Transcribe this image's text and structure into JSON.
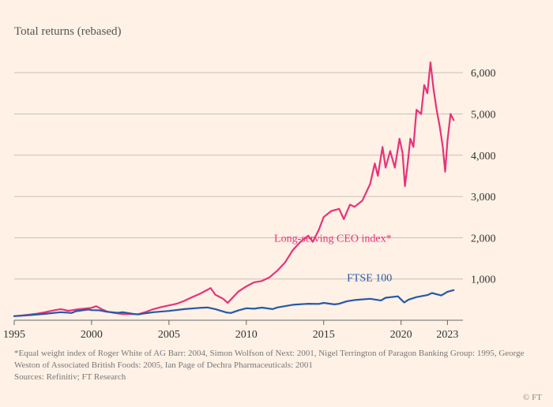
{
  "chart": {
    "type": "line",
    "background_color": "#fff1e5",
    "subtitle": "Total returns (rebased)",
    "xlim": [
      1995,
      2024
    ],
    "ylim": [
      0,
      6500
    ],
    "ytick_step": 1000,
    "yticks": [
      1000,
      2000,
      3000,
      4000,
      5000,
      6000
    ],
    "xticks": [
      1995,
      2000,
      2005,
      2010,
      2015,
      2020,
      2023
    ],
    "grid_color": "#c9beb4",
    "axis_color": "#666666",
    "tick_fontsize": 14,
    "subtitle_fontsize": 15,
    "label_fontsize": 14,
    "line_width": 2.2,
    "series": [
      {
        "name": "ceo_index",
        "label": "Long-serving CEO index*",
        "color": "#e6337a",
        "label_x": 2011.8,
        "label_y": 1900,
        "values": [
          [
            1995,
            100
          ],
          [
            1995.5,
            115
          ],
          [
            1996,
            135
          ],
          [
            1996.5,
            160
          ],
          [
            1997,
            195
          ],
          [
            1997.5,
            235
          ],
          [
            1998,
            270
          ],
          [
            1998.5,
            230
          ],
          [
            1999,
            260
          ],
          [
            1999.5,
            280
          ],
          [
            2000,
            300
          ],
          [
            2000.3,
            340
          ],
          [
            2000.7,
            260
          ],
          [
            2001,
            210
          ],
          [
            2001.5,
            175
          ],
          [
            2002,
            150
          ],
          [
            2002.5,
            150
          ],
          [
            2003,
            145
          ],
          [
            2003.5,
            200
          ],
          [
            2004,
            270
          ],
          [
            2004.5,
            320
          ],
          [
            2005,
            360
          ],
          [
            2005.5,
            400
          ],
          [
            2006,
            470
          ],
          [
            2006.5,
            560
          ],
          [
            2007,
            640
          ],
          [
            2007.3,
            700
          ],
          [
            2007.7,
            780
          ],
          [
            2008,
            620
          ],
          [
            2008.5,
            520
          ],
          [
            2008.8,
            420
          ],
          [
            2009,
            500
          ],
          [
            2009.5,
            700
          ],
          [
            2010,
            820
          ],
          [
            2010.5,
            920
          ],
          [
            2011,
            950
          ],
          [
            2011.5,
            1040
          ],
          [
            2012,
            1200
          ],
          [
            2012.5,
            1400
          ],
          [
            2013,
            1700
          ],
          [
            2013.5,
            1900
          ],
          [
            2014,
            2050
          ],
          [
            2014.3,
            1900
          ],
          [
            2014.7,
            2200
          ],
          [
            2015,
            2500
          ],
          [
            2015.5,
            2650
          ],
          [
            2016,
            2700
          ],
          [
            2016.3,
            2450
          ],
          [
            2016.7,
            2800
          ],
          [
            2017,
            2750
          ],
          [
            2017.5,
            2900
          ],
          [
            2018,
            3300
          ],
          [
            2018.3,
            3800
          ],
          [
            2018.5,
            3500
          ],
          [
            2018.8,
            4200
          ],
          [
            2019,
            3700
          ],
          [
            2019.3,
            4100
          ],
          [
            2019.6,
            3700
          ],
          [
            2019.9,
            4400
          ],
          [
            2020.1,
            4050
          ],
          [
            2020.25,
            3250
          ],
          [
            2020.4,
            3700
          ],
          [
            2020.6,
            4400
          ],
          [
            2020.8,
            4200
          ],
          [
            2021,
            5100
          ],
          [
            2021.3,
            5000
          ],
          [
            2021.5,
            5700
          ],
          [
            2021.7,
            5500
          ],
          [
            2021.9,
            6250
          ],
          [
            2022.1,
            5600
          ],
          [
            2022.3,
            5100
          ],
          [
            2022.5,
            4700
          ],
          [
            2022.7,
            4200
          ],
          [
            2022.85,
            3600
          ],
          [
            2023,
            4350
          ],
          [
            2023.2,
            5000
          ],
          [
            2023.4,
            4850
          ]
        ]
      },
      {
        "name": "ftse100",
        "label": "FTSE 100",
        "color": "#2659a6",
        "label_x": 2016.5,
        "label_y": 950,
        "values": [
          [
            1995,
            100
          ],
          [
            1996,
            125
          ],
          [
            1997,
            155
          ],
          [
            1998,
            195
          ],
          [
            1998.7,
            175
          ],
          [
            1999,
            220
          ],
          [
            1999.8,
            260
          ],
          [
            2000,
            245
          ],
          [
            2000.5,
            240
          ],
          [
            2001,
            205
          ],
          [
            2001.7,
            180
          ],
          [
            2002,
            195
          ],
          [
            2002.7,
            155
          ],
          [
            2003,
            140
          ],
          [
            2003.5,
            170
          ],
          [
            2004,
            195
          ],
          [
            2005,
            225
          ],
          [
            2006,
            270
          ],
          [
            2007,
            300
          ],
          [
            2007.5,
            310
          ],
          [
            2008,
            270
          ],
          [
            2008.7,
            190
          ],
          [
            2009,
            175
          ],
          [
            2009.5,
            240
          ],
          [
            2010,
            290
          ],
          [
            2010.5,
            280
          ],
          [
            2011,
            305
          ],
          [
            2011.7,
            270
          ],
          [
            2012,
            310
          ],
          [
            2013,
            375
          ],
          [
            2014,
            400
          ],
          [
            2014.7,
            395
          ],
          [
            2015,
            420
          ],
          [
            2015.7,
            385
          ],
          [
            2016,
            400
          ],
          [
            2016.5,
            460
          ],
          [
            2017,
            490
          ],
          [
            2018,
            520
          ],
          [
            2018.7,
            480
          ],
          [
            2019,
            545
          ],
          [
            2019.8,
            580
          ],
          [
            2020.2,
            430
          ],
          [
            2020.5,
            500
          ],
          [
            2021,
            560
          ],
          [
            2021.7,
            610
          ],
          [
            2022,
            660
          ],
          [
            2022.6,
            600
          ],
          [
            2023,
            690
          ],
          [
            2023.4,
            730
          ]
        ]
      }
    ]
  },
  "footnote": "*Equal weight index of Roger White of AG Barr: 2004, Simon Wolfson of Next: 2001, Nigel Terrington of Paragon Banking Group: 1995, George Weston of Associated British Foods: 2005, Ian Page of Dechra Pharmaceuticals: 2001\nSources: Refinitiv; FT Research",
  "copyright": "© FT"
}
